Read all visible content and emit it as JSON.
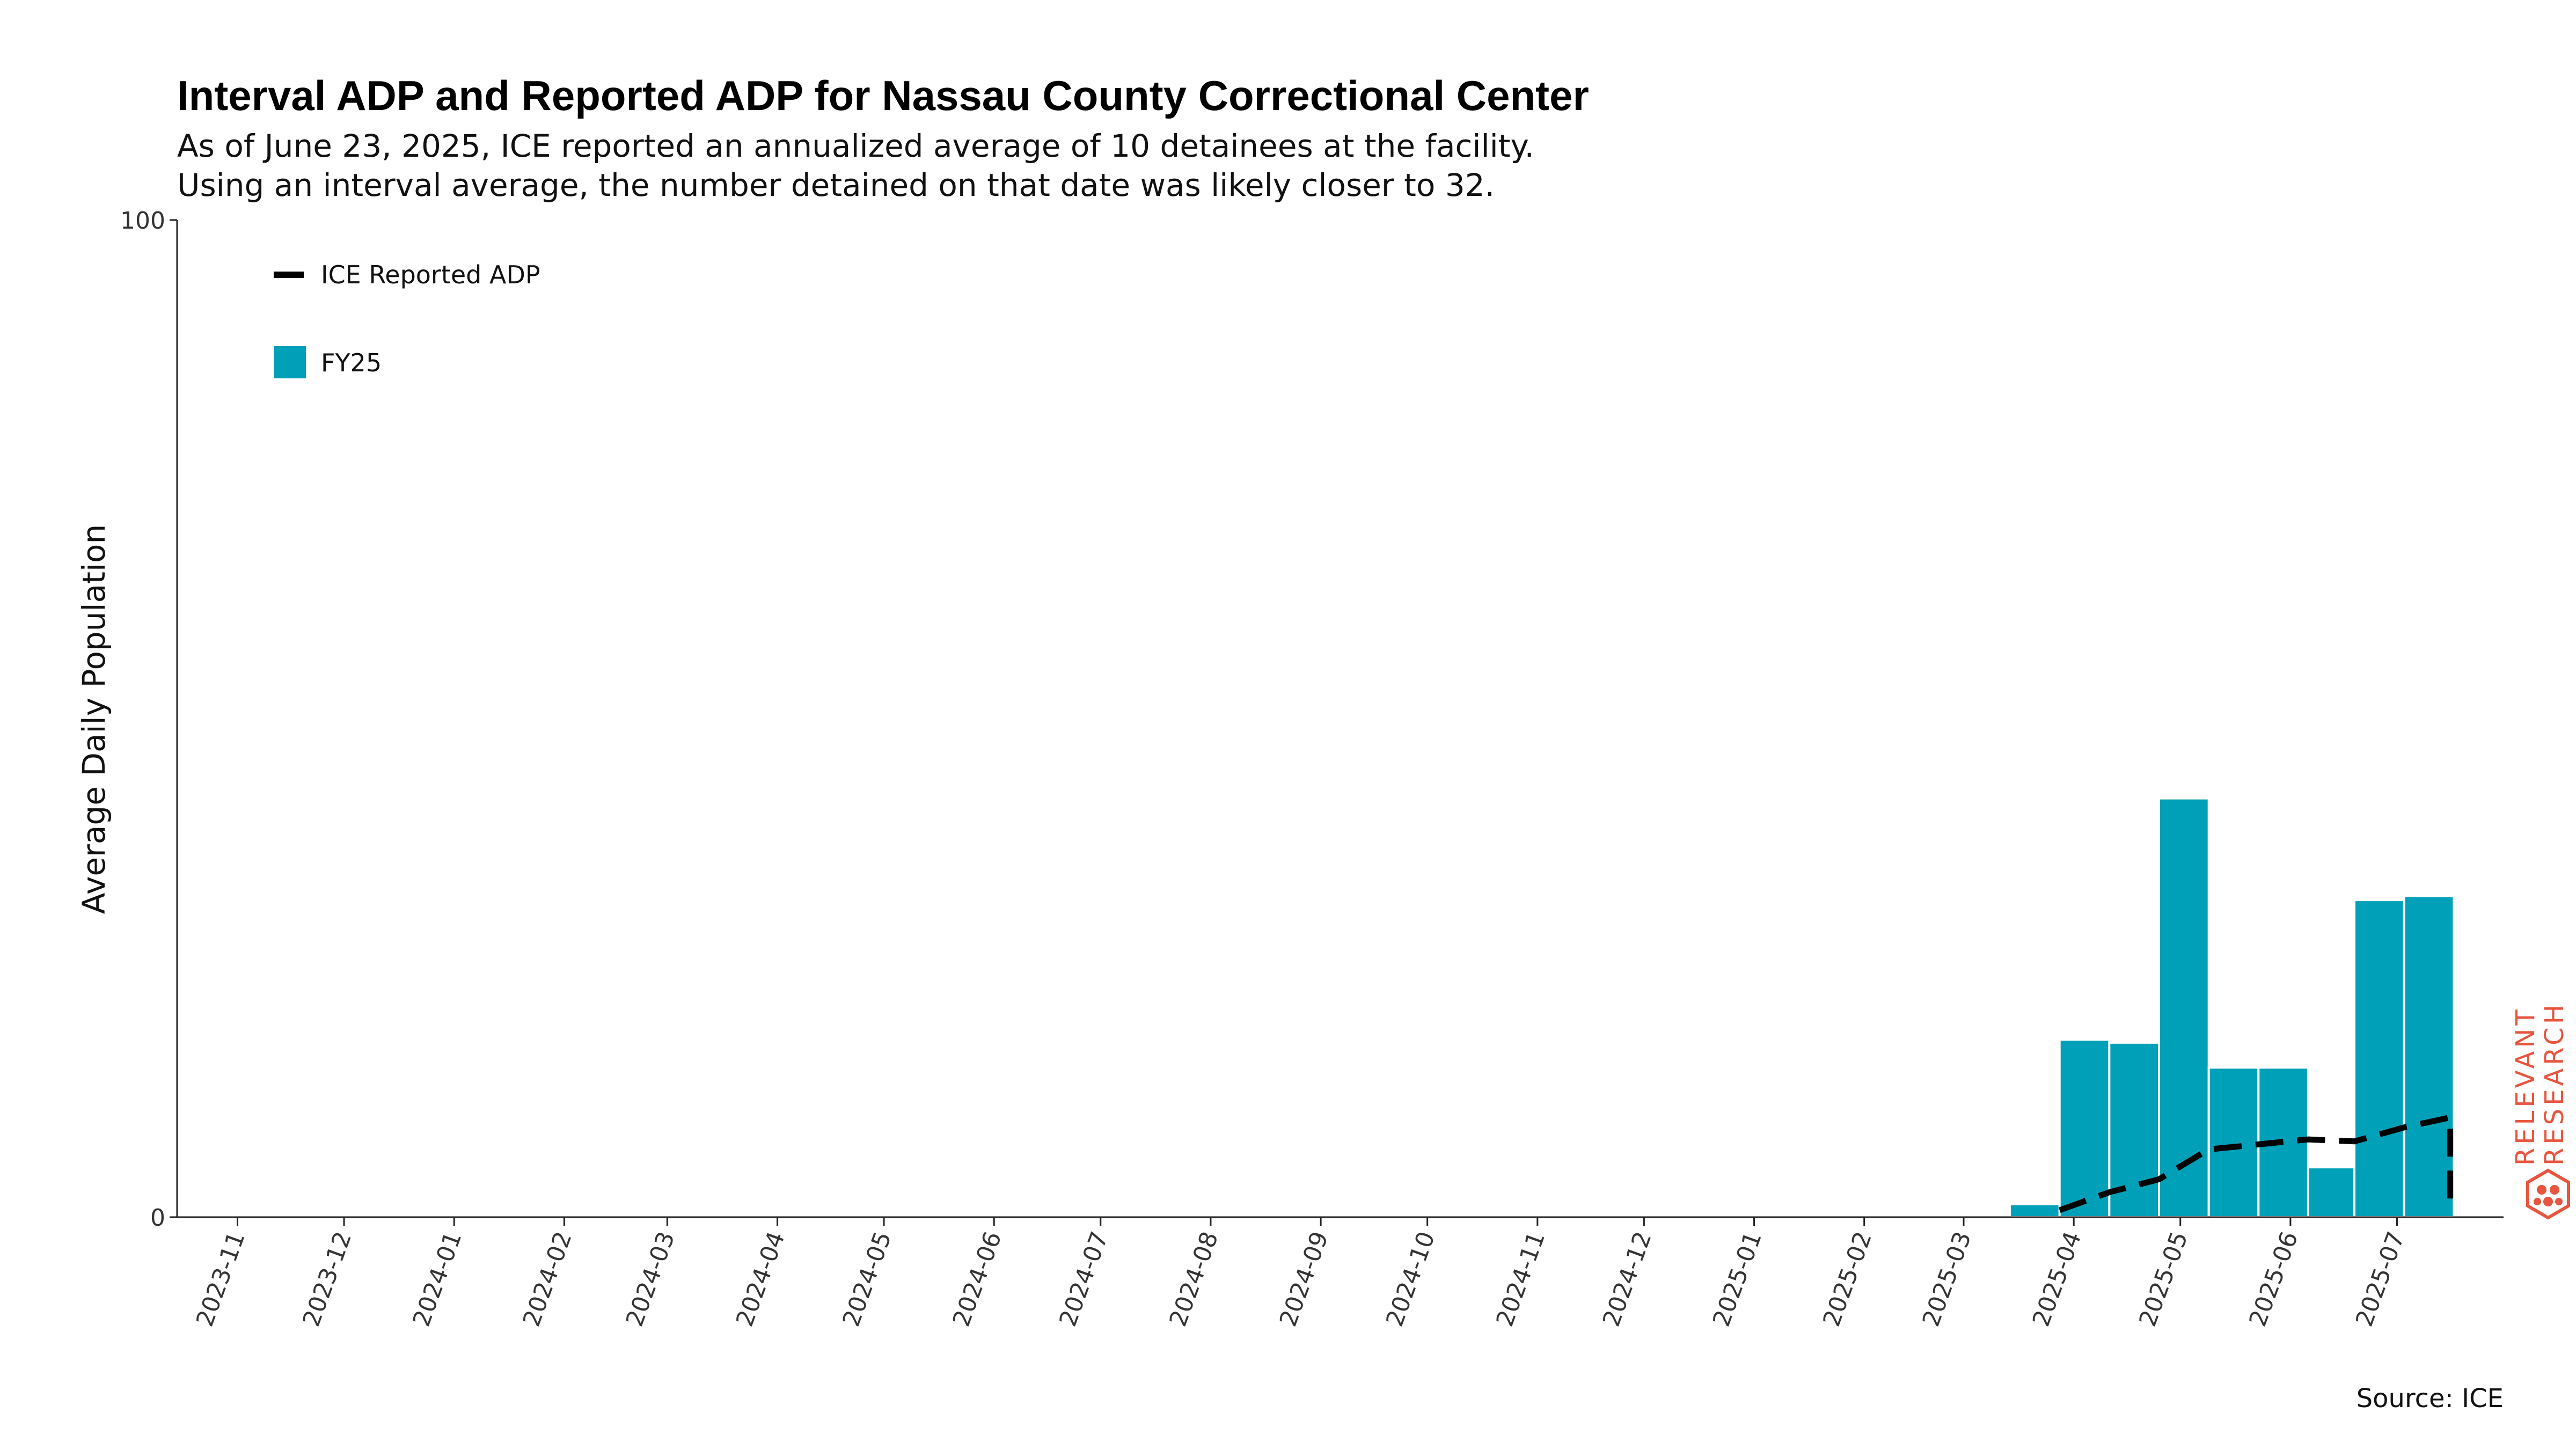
{
  "chart_data": {
    "type": "bar",
    "title": "Interval ADP and Reported ADP for Nassau County Correctional Center",
    "subtitle_lines": [
      "As of June 23, 2025, ICE reported an annualized average of 10 detainees at the facility.",
      "Using an interval average, the number detained on that date was likely closer to 32."
    ],
    "xlabel": "",
    "ylabel": "Average Daily Population",
    "ylim": [
      0,
      100
    ],
    "y_ticks": [
      0,
      100
    ],
    "xlim": [
      "2023-10-15",
      "2025-07-31"
    ],
    "x_ticks": [
      "2023-11",
      "2023-12",
      "2024-01",
      "2024-02",
      "2024-03",
      "2024-04",
      "2024-05",
      "2024-06",
      "2024-07",
      "2024-08",
      "2024-09",
      "2024-10",
      "2024-11",
      "2024-12",
      "2025-01",
      "2025-02",
      "2025-03",
      "2025-04",
      "2025-05",
      "2025-06",
      "2025-07"
    ],
    "bar_color": "#00a0b8",
    "line_color": "#000000",
    "legend_position": "top-left",
    "grid": false,
    "series": [
      {
        "name": "FY25",
        "kind": "bar",
        "bars": [
          {
            "start": "2025-03-14",
            "end": "2025-03-28",
            "value": 1.3
          },
          {
            "start": "2025-03-28",
            "end": "2025-04-11",
            "value": 17.8
          },
          {
            "start": "2025-04-11",
            "end": "2025-04-25",
            "value": 17.5
          },
          {
            "start": "2025-04-25",
            "end": "2025-05-09",
            "value": 42.0
          },
          {
            "start": "2025-05-09",
            "end": "2025-05-23",
            "value": 15.0
          },
          {
            "start": "2025-05-23",
            "end": "2025-06-06",
            "value": 15.0
          },
          {
            "start": "2025-06-06",
            "end": "2025-06-19",
            "value": 5.0
          },
          {
            "start": "2025-06-19",
            "end": "2025-07-03",
            "value": 31.8
          },
          {
            "start": "2025-07-03",
            "end": "2025-07-17",
            "value": 32.2
          }
        ]
      },
      {
        "name": "ICE Reported ADP",
        "kind": "line",
        "points": [
          {
            "x": "2025-03-28",
            "y": 0.7
          },
          {
            "x": "2025-04-11",
            "y": 2.5
          },
          {
            "x": "2025-04-25",
            "y": 3.8
          },
          {
            "x": "2025-05-09",
            "y": 6.8
          },
          {
            "x": "2025-05-23",
            "y": 7.3
          },
          {
            "x": "2025-06-06",
            "y": 7.8
          },
          {
            "x": "2025-06-19",
            "y": 7.6
          },
          {
            "x": "2025-07-03",
            "y": 9.0
          },
          {
            "x": "2025-07-16",
            "y": 10.0
          },
          {
            "x": "2025-07-16",
            "y": 1.5
          }
        ]
      }
    ],
    "legend": [
      {
        "label": "ICE Reported ADP",
        "kind": "line"
      },
      {
        "label": "FY25",
        "kind": "bar"
      }
    ],
    "source": "Source: ICE"
  },
  "branding": {
    "logo_lines": [
      "RELEVANT",
      "RESEARCH"
    ],
    "logo_color": "#e8553e"
  }
}
